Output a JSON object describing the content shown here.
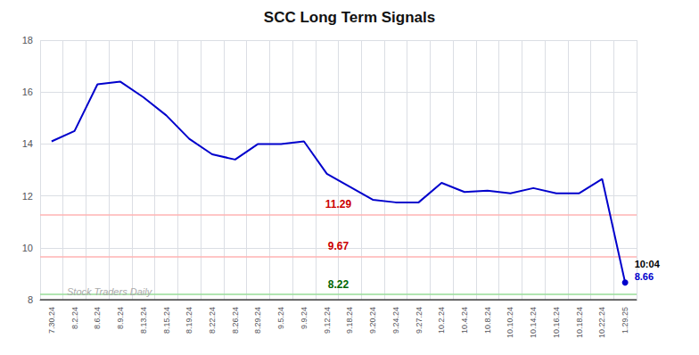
{
  "chart_data": {
    "type": "line",
    "title": "SCC Long Term Signals",
    "categories": [
      "7.30.24",
      "8.2.24",
      "8.6.24",
      "8.9.24",
      "8.13.24",
      "8.15.24",
      "8.19.24",
      "8.22.24",
      "8.26.24",
      "8.29.24",
      "9.5.24",
      "9.9.24",
      "9.12.24",
      "9.18.24",
      "9.20.24",
      "9.24.24",
      "9.27.24",
      "10.2.24",
      "10.4.24",
      "10.8.24",
      "10.10.24",
      "10.14.24",
      "10.16.24",
      "10.18.24",
      "10.22.24",
      "1.29.25"
    ],
    "values": [
      14.1,
      14.5,
      16.3,
      16.4,
      15.8,
      15.1,
      14.2,
      13.6,
      13.4,
      14.0,
      14.0,
      14.1,
      12.85,
      12.35,
      11.85,
      11.75,
      11.75,
      12.5,
      12.15,
      12.2,
      12.1,
      12.3,
      12.1,
      12.1,
      12.65,
      8.66
    ],
    "color": "#0000cc",
    "ylim": [
      8,
      18
    ],
    "yticks": [
      8,
      10,
      12,
      14,
      16,
      18
    ],
    "grid": true,
    "hlines": [
      {
        "value": 11.29,
        "color": "#ffb3b3",
        "label": "11.29",
        "label_color": "#cc0000"
      },
      {
        "value": 9.67,
        "color": "#ffb3b3",
        "label": "9.67",
        "label_color": "#cc0000"
      },
      {
        "value": 8.22,
        "color": "#99dd99",
        "label": "8.22",
        "label_color": "#006600"
      },
      {
        "value": 8.0,
        "color": "#555555"
      }
    ],
    "annotations": [
      {
        "text": "10:04",
        "color": "#000000"
      },
      {
        "text": "8.66",
        "color": "#0000cc"
      }
    ],
    "watermark": {
      "text": "Stock Traders Daily",
      "color": "#aaaaaa"
    }
  }
}
